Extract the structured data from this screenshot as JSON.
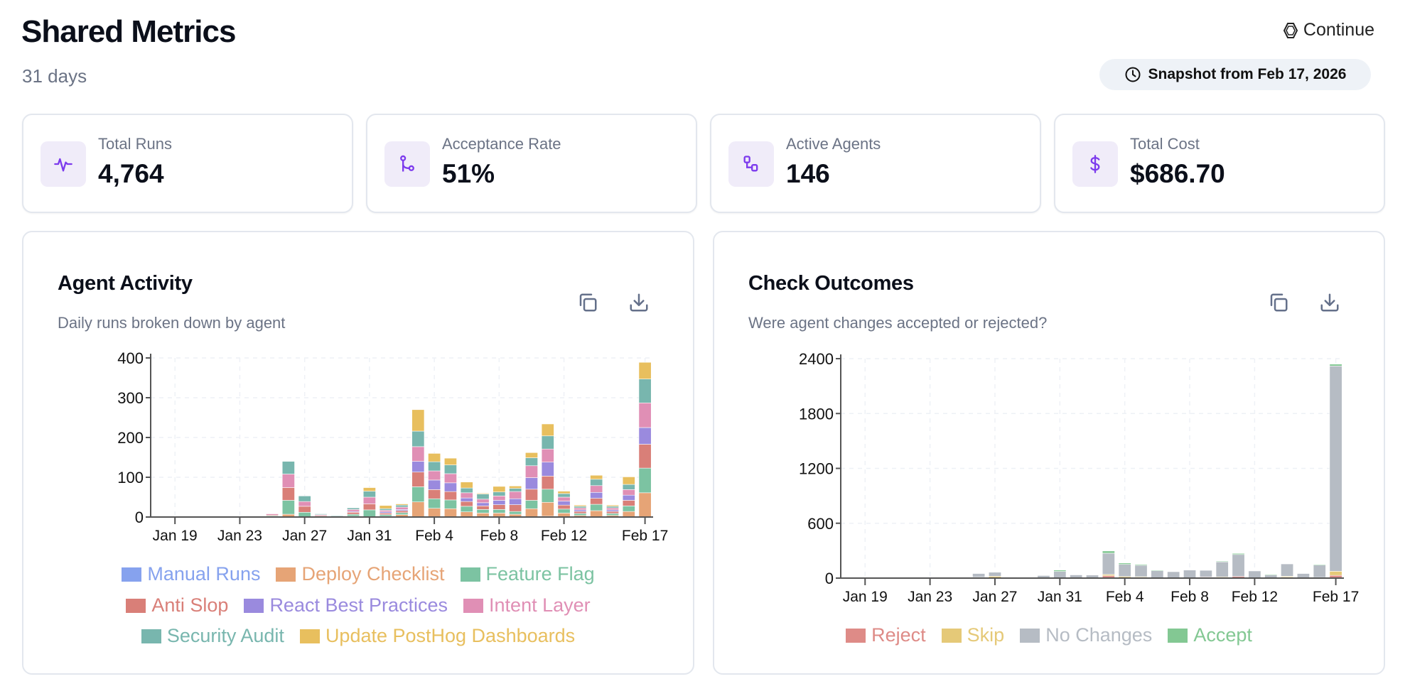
{
  "header": {
    "title": "Shared Metrics",
    "subtitle": "31 days",
    "brand": "Continue",
    "snapshot": "Snapshot from Feb 17, 2026"
  },
  "stats": [
    {
      "label": "Total Runs",
      "value": "4,764",
      "icon": "activity-icon"
    },
    {
      "label": "Acceptance Rate",
      "value": "51%",
      "icon": "git-merge-icon"
    },
    {
      "label": "Active Agents",
      "value": "146",
      "icon": "agents-icon"
    },
    {
      "label": "Total Cost",
      "value": "$686.70",
      "icon": "dollar-icon"
    }
  ],
  "accent": "#7c3aed",
  "chart_data": [
    {
      "type": "bar",
      "stacked": true,
      "title": "Agent Activity",
      "subtitle": "Daily runs broken down by agent",
      "categories": [
        "Jan 18",
        "Jan 19",
        "Jan 20",
        "Jan 21",
        "Jan 22",
        "Jan 23",
        "Jan 24",
        "Jan 25",
        "Jan 26",
        "Jan 27",
        "Jan 28",
        "Jan 29",
        "Jan 30",
        "Jan 31",
        "Feb 1",
        "Feb 2",
        "Feb 3",
        "Feb 4",
        "Feb 5",
        "Feb 6",
        "Feb 7",
        "Feb 8",
        "Feb 9",
        "Feb 10",
        "Feb 11",
        "Feb 12",
        "Feb 13",
        "Feb 14",
        "Feb 15",
        "Feb 16",
        "Feb 17"
      ],
      "xticks": [
        "Jan 19",
        "Jan 23",
        "Jan 27",
        "Jan 31",
        "Feb 4",
        "Feb 8",
        "Feb 12",
        "Feb 17"
      ],
      "yticks": [
        0,
        100,
        200,
        300,
        400
      ],
      "ylim": [
        0,
        400
      ],
      "grid": true,
      "legend": "bottom",
      "series": [
        {
          "name": "Manual Runs",
          "color": "#86a2ee",
          "values": [
            0,
            0,
            0,
            0,
            1,
            0,
            0,
            0,
            0,
            0,
            0,
            0,
            0,
            1,
            0,
            0,
            0,
            0,
            0,
            0,
            0,
            0,
            0,
            0,
            2,
            0,
            0,
            0,
            0,
            0,
            0
          ]
        },
        {
          "name": "Deploy Checklist",
          "color": "#e6a476",
          "values": [
            0,
            0,
            0,
            0,
            0,
            0,
            0,
            0,
            7,
            0,
            1,
            1,
            2,
            0,
            2,
            6,
            38,
            22,
            21,
            13,
            10,
            10,
            7,
            21,
            35,
            10,
            4,
            16,
            4,
            14,
            61
          ]
        },
        {
          "name": "Feature Flag",
          "color": "#7cc3a2",
          "values": [
            0,
            0,
            0,
            0,
            0,
            1,
            0,
            3,
            35,
            12,
            1,
            0,
            5,
            17,
            4,
            5,
            38,
            24,
            22,
            14,
            9,
            9,
            7,
            21,
            33,
            10,
            5,
            16,
            5,
            14,
            62
          ]
        },
        {
          "name": "Anti Slop",
          "color": "#d97f78",
          "values": [
            0,
            0,
            0,
            0,
            0,
            0,
            0,
            2,
            32,
            15,
            2,
            1,
            5,
            15,
            4,
            5,
            37,
            23,
            21,
            12,
            9,
            12,
            17,
            28,
            33,
            10,
            5,
            15,
            5,
            14,
            60
          ]
        },
        {
          "name": "React Best Practices",
          "color": "#9a8ade",
          "values": [
            0,
            0,
            0,
            0,
            0,
            0,
            0,
            0,
            0,
            0,
            0,
            0,
            2,
            0,
            3,
            3,
            27,
            24,
            22,
            9,
            8,
            11,
            15,
            29,
            35,
            10,
            4,
            15,
            4,
            13,
            42
          ]
        },
        {
          "name": "Intent Layer",
          "color": "#e08fb5",
          "values": [
            0,
            0,
            0,
            0,
            0,
            0,
            0,
            3,
            34,
            12,
            2,
            1,
            5,
            17,
            4,
            6,
            37,
            23,
            23,
            13,
            9,
            11,
            18,
            30,
            33,
            10,
            5,
            17,
            5,
            14,
            62
          ]
        },
        {
          "name": "Security Audit",
          "color": "#78b6ae",
          "values": [
            0,
            0,
            0,
            0,
            0,
            0,
            0,
            0,
            32,
            14,
            2,
            1,
            4,
            15,
            4,
            5,
            39,
            23,
            22,
            12,
            13,
            10,
            8,
            20,
            33,
            9,
            4,
            16,
            4,
            13,
            60
          ]
        },
        {
          "name": "Update PostHog Dashboards",
          "color": "#e8bf5e",
          "values": [
            0,
            0,
            0,
            0,
            0,
            0,
            0,
            0,
            0,
            0,
            0,
            0,
            0,
            9,
            8,
            3,
            54,
            21,
            17,
            15,
            2,
            14,
            6,
            13,
            30,
            6,
            3,
            10,
            3,
            19,
            42
          ]
        }
      ]
    },
    {
      "type": "bar",
      "stacked": true,
      "title": "Check Outcomes",
      "subtitle": "Were agent changes accepted or rejected?",
      "categories": [
        "Jan 18",
        "Jan 19",
        "Jan 20",
        "Jan 21",
        "Jan 22",
        "Jan 23",
        "Jan 24",
        "Jan 25",
        "Jan 26",
        "Jan 27",
        "Jan 28",
        "Jan 29",
        "Jan 30",
        "Jan 31",
        "Feb 1",
        "Feb 2",
        "Feb 3",
        "Feb 4",
        "Feb 5",
        "Feb 6",
        "Feb 7",
        "Feb 8",
        "Feb 9",
        "Feb 10",
        "Feb 11",
        "Feb 12",
        "Feb 13",
        "Feb 14",
        "Feb 15",
        "Feb 16",
        "Feb 17"
      ],
      "xticks": [
        "Jan 19",
        "Jan 23",
        "Jan 27",
        "Jan 31",
        "Feb 4",
        "Feb 8",
        "Feb 12",
        "Feb 17"
      ],
      "yticks": [
        0,
        600,
        1200,
        1800,
        2400
      ],
      "ylim": [
        0,
        2400
      ],
      "grid": true,
      "legend": "bottom",
      "series": [
        {
          "name": "Reject",
          "color": "#de8b87",
          "values": [
            0,
            0,
            0,
            0,
            0,
            0,
            0,
            0,
            0,
            0,
            0,
            0,
            0,
            0,
            0,
            0,
            25,
            5,
            10,
            0,
            0,
            0,
            12,
            8,
            18,
            0,
            0,
            10,
            0,
            8,
            30
          ]
        },
        {
          "name": "Skip",
          "color": "#e5c978",
          "values": [
            0,
            0,
            0,
            0,
            0,
            0,
            0,
            0,
            10,
            20,
            0,
            0,
            0,
            0,
            0,
            0,
            15,
            12,
            5,
            0,
            0,
            0,
            0,
            5,
            0,
            0,
            0,
            10,
            0,
            0,
            45
          ]
        },
        {
          "name": "No Changes",
          "color": "#b6bcc4",
          "values": [
            0,
            0,
            0,
            0,
            0,
            0,
            0,
            5,
            40,
            44,
            8,
            4,
            28,
            73,
            35,
            33,
            232,
            133,
            125,
            83,
            70,
            88,
            73,
            164,
            240,
            78,
            37,
            135,
            50,
            134,
            2245
          ]
        },
        {
          "name": "Accept",
          "color": "#83c893",
          "values": [
            0,
            0,
            0,
            0,
            0,
            0,
            0,
            0,
            0,
            0,
            0,
            0,
            0,
            15,
            0,
            0,
            25,
            15,
            10,
            5,
            0,
            0,
            0,
            8,
            12,
            0,
            5,
            0,
            0,
            8,
            20
          ]
        }
      ]
    }
  ]
}
